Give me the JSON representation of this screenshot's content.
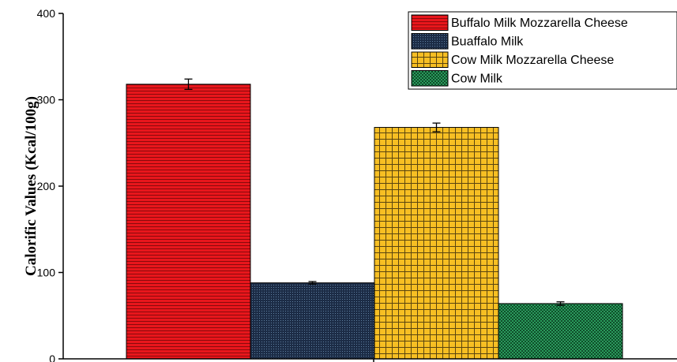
{
  "chart_data": {
    "type": "bar",
    "title": "",
    "xlabel": "",
    "ylabel": "Calorific Values (Kcal/100g)",
    "ylim": [
      0,
      400
    ],
    "yticks": [
      0,
      100,
      200,
      300,
      400
    ],
    "grid": false,
    "legend_position": "top-right",
    "series": [
      {
        "name": "Buffalo Milk Mozzarella Cheese",
        "value": 318,
        "error": 6,
        "color": "#e8161c",
        "pattern": "horizontal-lines"
      },
      {
        "name": "Buaffalo Milk",
        "value": 88,
        "error": 1.5,
        "color": "#1c2c46",
        "pattern": "fine-dots"
      },
      {
        "name": "Cow Milk Mozzarella Cheese",
        "value": 268,
        "error": 5,
        "color": "#f7bf23",
        "pattern": "grid"
      },
      {
        "name": "Cow Milk",
        "value": 64,
        "error": 2,
        "color": "#2a9a5c",
        "pattern": "checker"
      }
    ]
  }
}
